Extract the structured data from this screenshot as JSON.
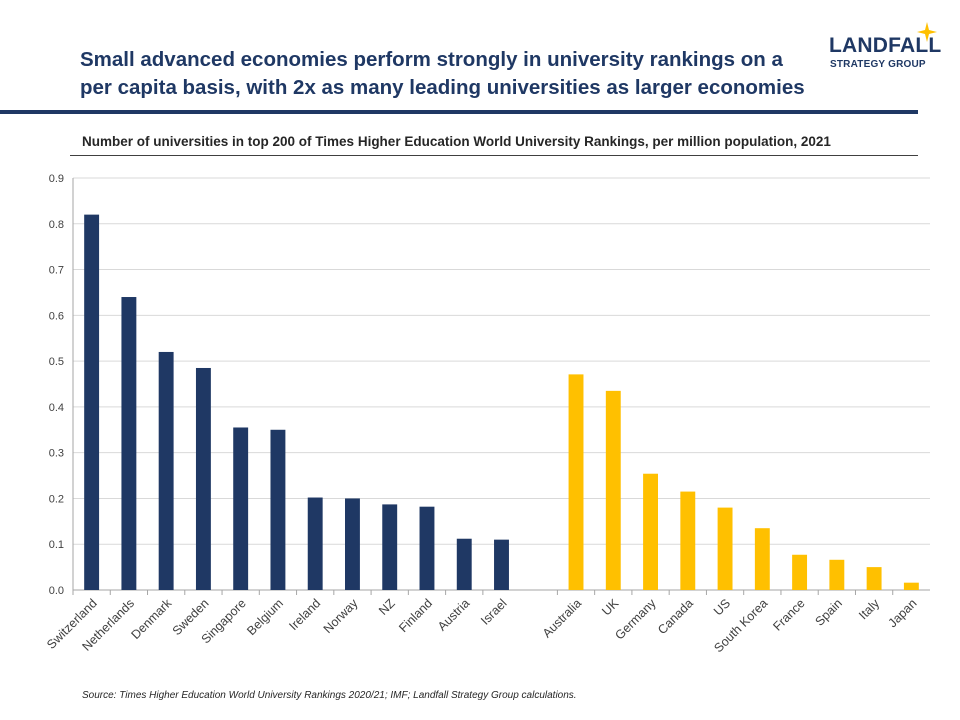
{
  "header": {
    "title": "Small advanced economies perform strongly in university rankings on a per capita basis, with 2x as many leading universities as larger economies",
    "logo_name": "LANDFALL",
    "logo_sub": "STRATEGY GROUP"
  },
  "subtitle": "Number of universities in top 200 of Times Higher Education World University Rankings, per million population, 2021",
  "source": "Source: Times Higher Education World University Rankings 2020/21; IMF; Landfall Strategy Group calculations.",
  "colors": {
    "small_economies": "#1f3864",
    "large_economies": "#ffc000",
    "brand": "#1f3864",
    "grid": "#d9d9d9"
  },
  "chart_data": {
    "type": "bar",
    "title": "Number of universities in top 200 of Times Higher Education World University Rankings, per million population, 2021",
    "xlabel": "",
    "ylabel": "",
    "ylim": [
      0,
      0.9
    ],
    "yticks": [
      "0.0",
      "0.1",
      "0.2",
      "0.3",
      "0.4",
      "0.5",
      "0.6",
      "0.7",
      "0.8",
      "0.9"
    ],
    "grid": true,
    "legend": "none",
    "groups": [
      {
        "categories": [
          "Switzerland",
          "Netherlands",
          "Denmark",
          "Sweden",
          "Singapore",
          "Belgium",
          "Ireland",
          "Norway",
          "NZ",
          "Finland",
          "Austria",
          "Israel"
        ],
        "values": [
          0.82,
          0.64,
          0.52,
          0.485,
          0.355,
          0.35,
          0.202,
          0.2,
          0.187,
          0.182,
          0.112,
          0.11
        ],
        "color": "#1f3864"
      },
      {
        "categories": [
          "Australia",
          "UK",
          "Germany",
          "Canada",
          "US",
          "South Korea",
          "France",
          "Spain",
          "Italy",
          "Japan"
        ],
        "values": [
          0.471,
          0.435,
          0.254,
          0.215,
          0.18,
          0.135,
          0.077,
          0.066,
          0.05,
          0.016
        ],
        "color": "#ffc000"
      }
    ]
  }
}
